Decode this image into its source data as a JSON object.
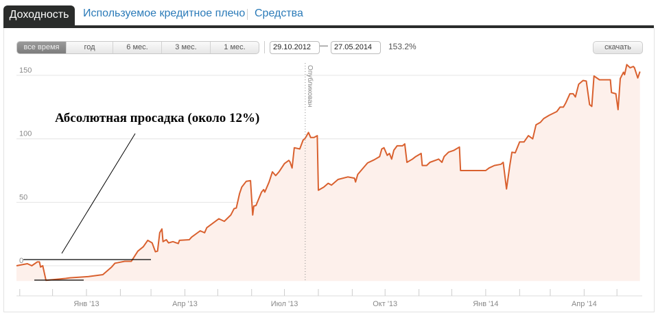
{
  "tabs": [
    {
      "label": "Доходность",
      "active": true
    },
    {
      "label": "Используемое кредитное плечо",
      "active": false
    },
    {
      "label": "Средства",
      "active": false
    }
  ],
  "controls": {
    "periods": [
      {
        "label": "все время",
        "active": true
      },
      {
        "label": "год",
        "active": false
      },
      {
        "label": "6 мес.",
        "active": false
      },
      {
        "label": "3 мес.",
        "active": false
      },
      {
        "label": "1 мес.",
        "active": false
      }
    ],
    "date_from": "29.10.2012",
    "date_separator": "—",
    "date_to": "27.05.2014",
    "total_return": "153.2%",
    "download_label": "скачать"
  },
  "chart_data": {
    "type": "area",
    "line_color": "#d9602e",
    "fill_color": "#fdf0eb",
    "grid": true,
    "ylim": [
      -12,
      160
    ],
    "y_ticks": [
      0,
      50,
      100,
      150
    ],
    "y_tick_labels": [
      "0",
      "50",
      "100",
      "150"
    ],
    "x_tick_labels": [
      {
        "date": "2013-01-01",
        "label": "Янв '13"
      },
      {
        "date": "2013-04-01",
        "label": "Апр '13"
      },
      {
        "date": "2013-07-01",
        "label": "Июл '13"
      },
      {
        "date": "2013-10-01",
        "label": "Окт '13"
      },
      {
        "date": "2014-01-01",
        "label": "Янв '14"
      },
      {
        "date": "2014-04-01",
        "label": "Апр '14"
      }
    ],
    "xlim": [
      "2012-10-29",
      "2014-05-27"
    ],
    "marker": {
      "date": "2013-07-20",
      "label": "Опубликован"
    },
    "annotation": {
      "text": "Абсолютная просадка (около 12%)",
      "drawdown_from": 0,
      "drawdown_to": -12
    },
    "series": [
      {
        "points": [
          [
            "2012-10-29",
            0
          ],
          [
            "2012-11-08",
            1.6
          ],
          [
            "2012-11-12",
            0
          ],
          [
            "2012-11-17",
            3
          ],
          [
            "2012-11-19",
            3
          ],
          [
            "2012-11-20",
            -1
          ],
          [
            "2012-11-22",
            0
          ],
          [
            "2012-11-25",
            -11.5
          ],
          [
            "2012-12-13",
            -10
          ],
          [
            "2012-12-17",
            -9.5
          ],
          [
            "2013-01-03",
            -8.5
          ],
          [
            "2013-01-16",
            -7
          ],
          [
            "2013-01-24",
            -1
          ],
          [
            "2013-01-27",
            2
          ],
          [
            "2013-02-05",
            3.5
          ],
          [
            "2013-02-11",
            3.5
          ],
          [
            "2013-02-17",
            11.5
          ],
          [
            "2013-02-22",
            15
          ],
          [
            "2013-02-26",
            20
          ],
          [
            "2013-03-02",
            18
          ],
          [
            "2013-03-05",
            11
          ],
          [
            "2013-03-07",
            11.5
          ],
          [
            "2013-03-09",
            26
          ],
          [
            "2013-03-11",
            29
          ],
          [
            "2013-03-12",
            19
          ],
          [
            "2013-03-15",
            20.5
          ],
          [
            "2013-03-17",
            18
          ],
          [
            "2013-03-21",
            19
          ],
          [
            "2013-03-26",
            17.5
          ],
          [
            "2013-03-27",
            20
          ],
          [
            "2013-04-05",
            20.5
          ],
          [
            "2013-04-07",
            22.5
          ],
          [
            "2013-04-15",
            27.5
          ],
          [
            "2013-04-19",
            26
          ],
          [
            "2013-04-21",
            30
          ],
          [
            "2013-05-02",
            37
          ],
          [
            "2013-05-07",
            35
          ],
          [
            "2013-05-13",
            40
          ],
          [
            "2013-05-16",
            45
          ],
          [
            "2013-05-18",
            45.5
          ],
          [
            "2013-05-21",
            57
          ],
          [
            "2013-05-23",
            62
          ],
          [
            "2013-05-27",
            66.5
          ],
          [
            "2013-05-31",
            67
          ],
          [
            "2013-06-02",
            40
          ],
          [
            "2013-06-03",
            47
          ],
          [
            "2013-06-05",
            47.5
          ],
          [
            "2013-06-10",
            58
          ],
          [
            "2013-06-12",
            60
          ],
          [
            "2013-06-13",
            58
          ],
          [
            "2013-06-17",
            66
          ],
          [
            "2013-06-20",
            74
          ],
          [
            "2013-06-23",
            71
          ],
          [
            "2013-06-26",
            74
          ],
          [
            "2013-07-01",
            80.5
          ],
          [
            "2013-07-05",
            83
          ],
          [
            "2013-07-06",
            82
          ],
          [
            "2013-07-08",
            77
          ],
          [
            "2013-07-10",
            93
          ],
          [
            "2013-07-15",
            92
          ],
          [
            "2013-07-18",
            99
          ],
          [
            "2013-07-20",
            100.5
          ],
          [
            "2013-07-23",
            105
          ],
          [
            "2013-07-25",
            101
          ],
          [
            "2013-07-28",
            101
          ],
          [
            "2013-07-31",
            102.5
          ],
          [
            "2013-08-01",
            59.5
          ],
          [
            "2013-08-06",
            62
          ],
          [
            "2013-08-10",
            65
          ],
          [
            "2013-08-13",
            63.5
          ],
          [
            "2013-08-19",
            68
          ],
          [
            "2013-08-28",
            70
          ],
          [
            "2013-09-03",
            69
          ],
          [
            "2013-09-04",
            66
          ],
          [
            "2013-09-06",
            72
          ],
          [
            "2013-09-15",
            81
          ],
          [
            "2013-09-21",
            83.5
          ],
          [
            "2013-09-26",
            86
          ],
          [
            "2013-09-28",
            92
          ],
          [
            "2013-09-30",
            93
          ],
          [
            "2013-10-03",
            87
          ],
          [
            "2013-10-05",
            88.5
          ],
          [
            "2013-10-07",
            84
          ],
          [
            "2013-10-09",
            91
          ],
          [
            "2013-10-12",
            94.5
          ],
          [
            "2013-10-17",
            94.5
          ],
          [
            "2013-10-19",
            96
          ],
          [
            "2013-10-21",
            81.5
          ],
          [
            "2013-10-26",
            84
          ],
          [
            "2013-10-29",
            86
          ],
          [
            "2013-11-03",
            88.5
          ],
          [
            "2013-11-04",
            79
          ],
          [
            "2013-11-08",
            79
          ],
          [
            "2013-11-11",
            81.5
          ],
          [
            "2013-11-19",
            84
          ],
          [
            "2013-11-22",
            81.5
          ],
          [
            "2013-11-24",
            86
          ],
          [
            "2013-11-28",
            89.5
          ],
          [
            "2013-12-03",
            91
          ],
          [
            "2013-12-08",
            93.5
          ],
          [
            "2013-12-09",
            75
          ],
          [
            "2014-01-01",
            75
          ],
          [
            "2014-01-04",
            77
          ],
          [
            "2014-01-09",
            79
          ],
          [
            "2014-01-15",
            80
          ],
          [
            "2014-01-17",
            81.5
          ],
          [
            "2014-01-20",
            60.5
          ],
          [
            "2014-01-23",
            79
          ],
          [
            "2014-01-25",
            89.5
          ],
          [
            "2014-01-28",
            89
          ],
          [
            "2014-02-01",
            97.5
          ],
          [
            "2014-02-05",
            97.5
          ],
          [
            "2014-02-09",
            102.5
          ],
          [
            "2014-02-13",
            100
          ],
          [
            "2014-02-16",
            111
          ],
          [
            "2014-02-20",
            113
          ],
          [
            "2014-02-23",
            116
          ],
          [
            "2014-02-28",
            118.5
          ],
          [
            "2014-03-07",
            121.5
          ],
          [
            "2014-03-10",
            125
          ],
          [
            "2014-03-13",
            125
          ],
          [
            "2014-03-15",
            128
          ],
          [
            "2014-03-19",
            135.5
          ],
          [
            "2014-03-22",
            135.5
          ],
          [
            "2014-03-24",
            133
          ],
          [
            "2014-03-27",
            143
          ],
          [
            "2014-03-31",
            146
          ],
          [
            "2014-04-03",
            145.5
          ],
          [
            "2014-04-06",
            127
          ],
          [
            "2014-04-08",
            125.5
          ],
          [
            "2014-04-10",
            149.5
          ],
          [
            "2014-04-15",
            146.5
          ],
          [
            "2014-04-25",
            146.5
          ],
          [
            "2014-04-26",
            136.5
          ],
          [
            "2014-04-30",
            135.5
          ],
          [
            "2014-05-02",
            123
          ],
          [
            "2014-05-04",
            147.5
          ],
          [
            "2014-05-07",
            152.5
          ],
          [
            "2014-05-08",
            150.5
          ],
          [
            "2014-05-10",
            158.5
          ],
          [
            "2014-05-13",
            156
          ],
          [
            "2014-05-16",
            157
          ],
          [
            "2014-05-17",
            156
          ],
          [
            "2014-05-20",
            148
          ],
          [
            "2014-05-22",
            153
          ]
        ]
      }
    ]
  }
}
